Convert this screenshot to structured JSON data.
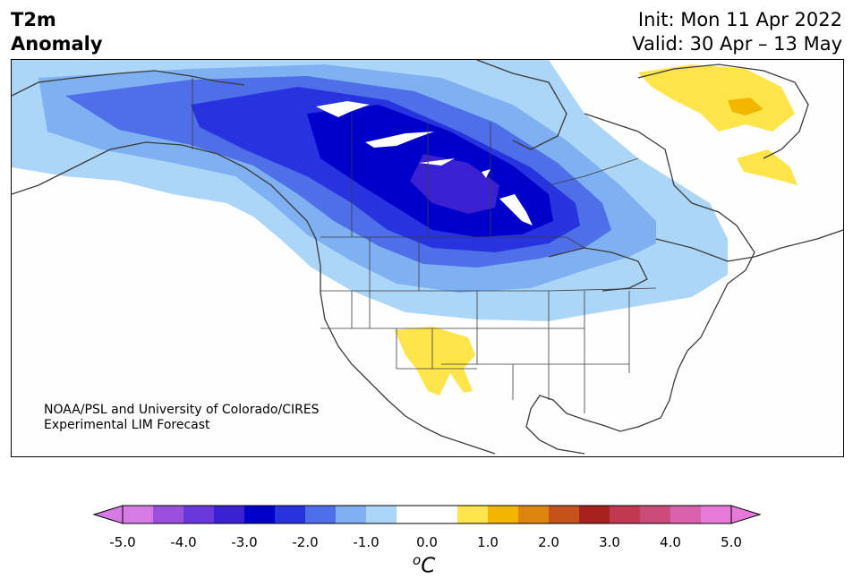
{
  "title": {
    "left_line1": "T2m",
    "left_line2": "Anomaly",
    "right_line1": "Init: Mon 11 Apr 2022",
    "right_line2": "Valid: 30 Apr – 13 May"
  },
  "credit": {
    "line1": "NOAA/PSL and University of Colorado/CIRES",
    "line2": "Experimental LIM Forecast"
  },
  "colorbar": {
    "unit_sup": "o",
    "unit_main": "C",
    "ticks": [
      "-5.0",
      "-4.0",
      "-3.0",
      "-2.0",
      "-1.0",
      "0.0",
      "1.0",
      "2.0",
      "3.0",
      "4.0",
      "5.0"
    ],
    "colors": [
      "#d77ae6",
      "#9a50dd",
      "#6a37da",
      "#3b1fd2",
      "#0000cb",
      "#2733df",
      "#4f6fe8",
      "#7eb0f2",
      "#abd6f8",
      "#ffffff",
      "#ffffff",
      "#ffe54a",
      "#f2b600",
      "#de8510",
      "#c4521a",
      "#a7211f",
      "#c1374f",
      "#cb4c7b",
      "#d862ae",
      "#e77ad8"
    ],
    "under_color": "#d77ae6",
    "over_color": "#e77ad8"
  },
  "map": {
    "region": "North America",
    "anomaly_colors": {
      "light_blue": "#abd6f8",
      "mid_blue": "#7eb0f2",
      "blue": "#4f6fe8",
      "royal_blue": "#2733df",
      "deep_blue": "#0000cb",
      "indigo": "#3b1fd2",
      "yellow": "#ffe54a",
      "gold": "#f2b600"
    }
  }
}
